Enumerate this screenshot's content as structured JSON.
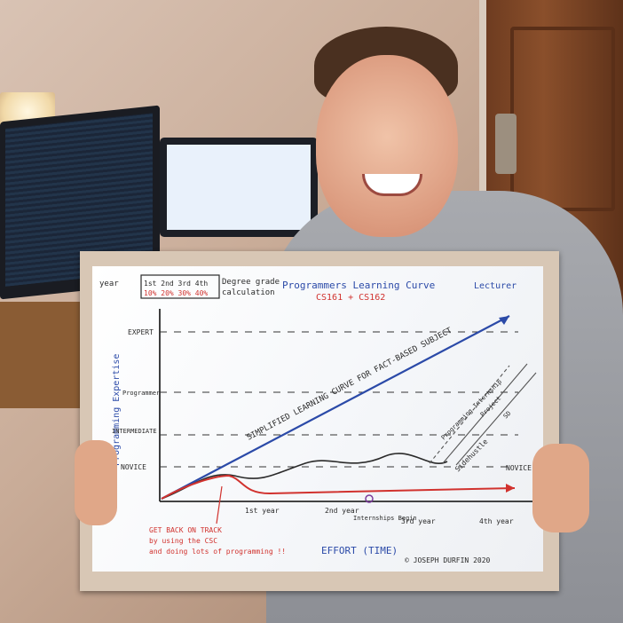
{
  "board": {
    "title": "Programmers Learning Curve",
    "title_aside": "Lecturer",
    "modules": "CS161 + CS162",
    "year_label": "year",
    "year_values": "1st 2nd 3rd 4th",
    "year_weights": "10% 20% 30% 40%",
    "degree_grade_label": "Degree grade",
    "degree_grade_calc": "calculation",
    "y_axis_label": "Programming Expertise",
    "x_axis_label": "EFFORT (TIME)",
    "levels": [
      "EXPERT",
      "Programmer",
      "INTERMEDIATE",
      "NOVICE"
    ],
    "right_novice": "NOVICE",
    "years_x": [
      "1st year",
      "2nd year",
      "3rd year",
      "4th year"
    ],
    "blue_line_label": "SIMPLIFIED LEARNING CURVE FOR FACT-BASED SUBJECT",
    "annotation_internship": "Programming Internship",
    "annotation_project": "Project",
    "annotation_sidehustle": "Sidehustle",
    "annotation_sd": "SD",
    "internships_label": "Internships Begin",
    "red_note_lines": [
      "GET BACK ON TRACK",
      "by using the CSC",
      "and doing lots of programming !!"
    ],
    "credit": "© JOSEPH DURFIN 2020",
    "colors": {
      "blue": "#2b4aa8",
      "red": "#d1322e",
      "black": "#2a2a2a"
    }
  }
}
